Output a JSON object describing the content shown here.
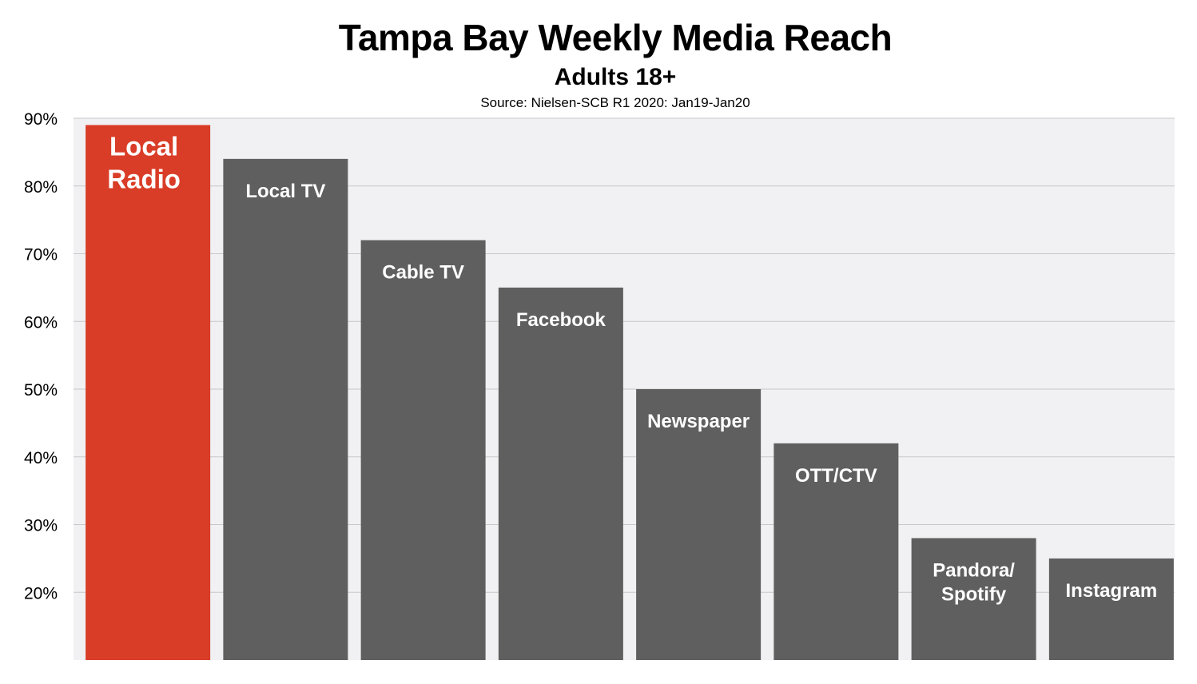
{
  "chart_data": {
    "type": "bar",
    "title": "Tampa Bay Weekly Media Reach",
    "subtitle": "Adults 18+",
    "source": "Source: Nielsen-SCB R1 2020: Jan19-Jan20",
    "xlabel": "",
    "ylabel": "",
    "ylim": [
      10,
      90
    ],
    "yticks": [
      "20%",
      "30%",
      "40%",
      "50%",
      "60%",
      "70%",
      "80%",
      "90%"
    ],
    "grid": true,
    "categories": [
      [
        "Local",
        "Radio"
      ],
      [
        "Local TV"
      ],
      [
        "Cable TV"
      ],
      [
        "Facebook"
      ],
      [
        "Newspaper"
      ],
      [
        "OTT/CTV"
      ],
      [
        "Pandora/",
        "Spotify"
      ],
      [
        "Instagram"
      ]
    ],
    "values": [
      89,
      84,
      72,
      65,
      50,
      42,
      28,
      25
    ],
    "colors": {
      "highlight": "#d93d27",
      "bar": "#5f5f5f",
      "plot_bg": "#f1f1f3",
      "grid": "#c8c8c8"
    },
    "highlight_index": 0
  }
}
